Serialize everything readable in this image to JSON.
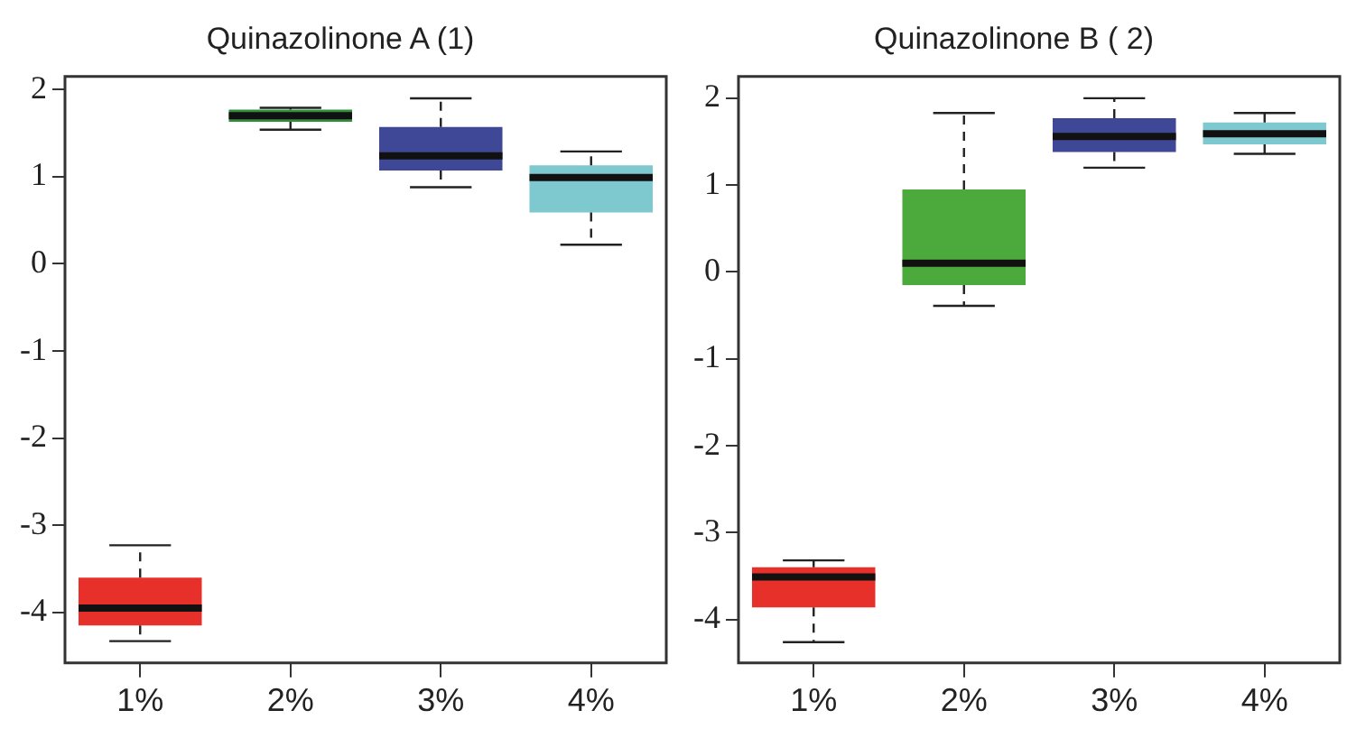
{
  "chart_data": [
    {
      "type": "box",
      "title": "Quinazolinone A (1)",
      "categories": [
        "1%",
        "2%",
        "3%",
        "4%"
      ],
      "colors": [
        "#e8302a",
        "#2f8f3a",
        "#3f4797",
        "#7ec8d0"
      ],
      "ylim": [
        -4.58,
        2.15
      ],
      "yticks": [
        -4,
        -3,
        -2,
        -1,
        0,
        1,
        2
      ],
      "boxes": [
        {
          "low": -4.33,
          "q1": -4.15,
          "median": -3.95,
          "q3": -3.6,
          "high": -3.23
        },
        {
          "low": 1.54,
          "q1": 1.63,
          "median": 1.7,
          "q3": 1.77,
          "high": 1.79
        },
        {
          "low": 0.88,
          "q1": 1.07,
          "median": 1.24,
          "q3": 1.57,
          "high": 1.9
        },
        {
          "low": 0.22,
          "q1": 0.59,
          "median": 0.99,
          "q3": 1.13,
          "high": 1.29
        }
      ]
    },
    {
      "type": "box",
      "title": "Quinazolinone B ( 2)",
      "categories": [
        "1%",
        "2%",
        "3%",
        "4%"
      ],
      "colors": [
        "#e8302a",
        "#4caa3c",
        "#3f4797",
        "#7ec8d0"
      ],
      "ylim": [
        -4.5,
        2.25
      ],
      "yticks": [
        -4,
        -3,
        -2,
        -1,
        0,
        1,
        2
      ],
      "boxes": [
        {
          "low": -4.26,
          "q1": -3.86,
          "median": -3.51,
          "q3": -3.4,
          "high": -3.32
        },
        {
          "low": -0.39,
          "q1": -0.15,
          "median": 0.1,
          "q3": 0.95,
          "high": 1.83
        },
        {
          "low": 1.2,
          "q1": 1.38,
          "median": 1.56,
          "q3": 1.77,
          "high": 2.0
        },
        {
          "low": 1.36,
          "q1": 1.47,
          "median": 1.59,
          "q3": 1.72,
          "high": 1.83
        }
      ]
    }
  ]
}
